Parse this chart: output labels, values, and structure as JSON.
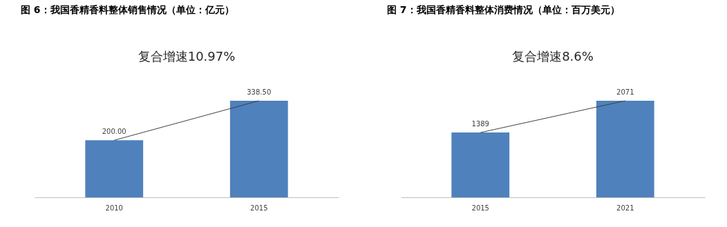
{
  "chart_data": [
    {
      "type": "bar",
      "title": "图 6：我国香精香料整体销售情况（单位：亿元）",
      "subtitle": "复合增速10.97%",
      "categories": [
        "2010",
        "2015"
      ],
      "tick_labels": "x",
      "series": [
        {
          "color": "#4f81bd",
          "values": [
            200.0,
            338.5
          ],
          "value_labels": [
            "200.00",
            "338.50"
          ]
        },
        {
          "type": "line",
          "color": "#404040",
          "line_style": "solid",
          "values": [
            200.0,
            338.5
          ]
        }
      ]
    },
    {
      "type": "bar",
      "title": "图 7：我国香精香料整体消费情况（单位：百万美元）",
      "subtitle": "复合增速8.6%",
      "categories": [
        "2015",
        "2021"
      ],
      "tick_labels": "x",
      "series": [
        {
          "color": "#4f81bd",
          "values": [
            1389,
            2071
          ],
          "value_labels": [
            "1389",
            "2071"
          ]
        },
        {
          "type": "line",
          "color": "#404040",
          "line_style": "solid",
          "values": [
            1389,
            2071
          ]
        }
      ]
    }
  ]
}
